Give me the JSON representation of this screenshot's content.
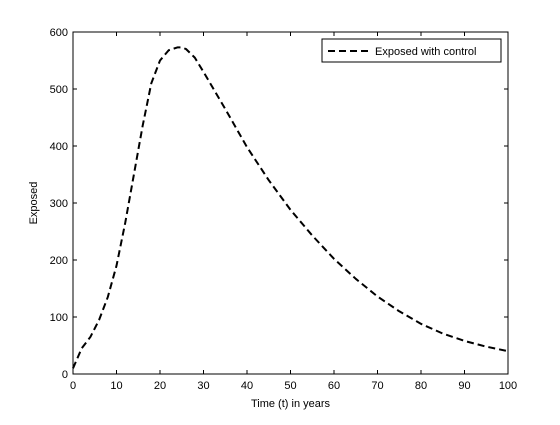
{
  "chart_data": {
    "type": "line",
    "xlabel": "Time (t) in years",
    "ylabel": "Exposed",
    "xlim": [
      0,
      100
    ],
    "ylim": [
      0,
      600
    ],
    "xticks": [
      0,
      10,
      20,
      30,
      40,
      50,
      60,
      70,
      80,
      90,
      100
    ],
    "yticks": [
      0,
      100,
      200,
      300,
      400,
      500,
      600
    ],
    "grid": false,
    "legend_position": "top-right",
    "series": [
      {
        "name": "Exposed with control",
        "style": "dashed",
        "color": "#000000",
        "x": [
          0,
          2,
          4,
          6,
          8,
          10,
          12,
          14,
          16,
          18,
          20,
          22,
          24,
          25,
          26,
          28,
          30,
          35,
          40,
          45,
          50,
          55,
          60,
          65,
          70,
          75,
          80,
          85,
          90,
          95,
          100
        ],
        "y": [
          10,
          45,
          65,
          95,
          135,
          190,
          265,
          350,
          435,
          510,
          550,
          568,
          573,
          573,
          570,
          555,
          530,
          465,
          398,
          340,
          288,
          243,
          202,
          167,
          136,
          110,
          88,
          71,
          58,
          48,
          40
        ]
      }
    ]
  }
}
